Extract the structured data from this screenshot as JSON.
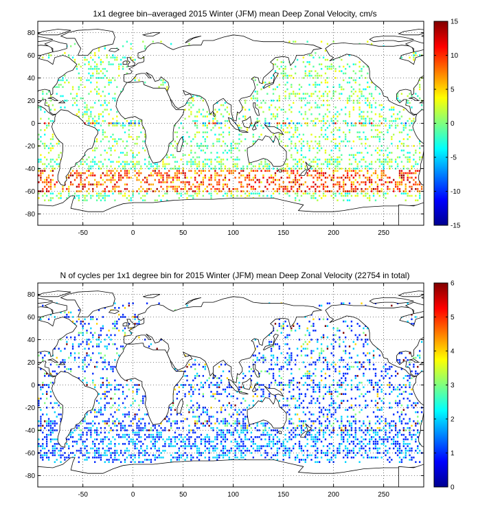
{
  "chart_data": [
    {
      "type": "heatmap",
      "title": "1x1 degree bin–averaged 2015 Winter (JFM) mean Deep Zonal Velocity, cm/s",
      "xlabel": "",
      "ylabel": "",
      "x_ticks": [
        -50,
        0,
        50,
        100,
        150,
        200,
        250
      ],
      "y_ticks": [
        80,
        60,
        40,
        20,
        0,
        -20,
        -40,
        -60,
        -80
      ],
      "xlim": [
        -95,
        290
      ],
      "ylim": [
        -90,
        90
      ],
      "grid": true,
      "colorbar": {
        "min": -15,
        "max": 15,
        "ticks": [
          15,
          10,
          5,
          0,
          -5,
          -10,
          -15
        ]
      },
      "field": "deep zonal velocity",
      "colormap": "jet",
      "seed": 11
    },
    {
      "type": "heatmap",
      "title": "N of cycles per 1x1 degree bin for 2015 Winter (JFM) mean Deep Zonal Velocity (22754 in total)",
      "xlabel": "",
      "ylabel": "",
      "x_ticks": [
        -50,
        0,
        50,
        100,
        150,
        200,
        250
      ],
      "y_ticks": [
        80,
        60,
        40,
        20,
        0,
        -20,
        -40,
        -60,
        -80
      ],
      "xlim": [
        -95,
        290
      ],
      "ylim": [
        -90,
        90
      ],
      "grid": true,
      "colorbar": {
        "min": 0,
        "max": 6,
        "ticks": [
          6,
          5,
          4,
          3,
          2,
          1,
          0
        ]
      },
      "field": "cycle count",
      "colormap": "jet",
      "seed": 23
    }
  ]
}
